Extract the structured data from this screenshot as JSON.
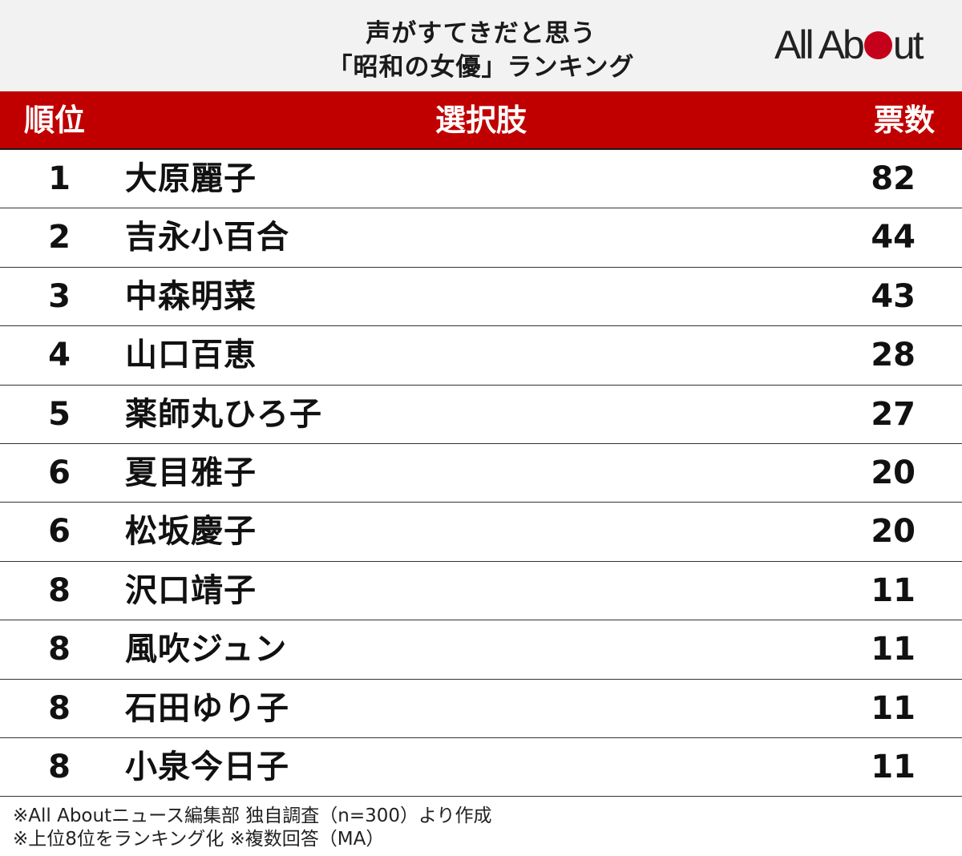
{
  "title": {
    "line1": "声がすてきだと思う",
    "line2": "「昭和の女優」ランキング"
  },
  "logo": {
    "text_before": "All Ab",
    "text_after": "ut",
    "dot_color": "#c4001b"
  },
  "table": {
    "headers": {
      "rank": "順位",
      "name": "選択肢",
      "votes": "票数"
    },
    "header_color": "#c00000",
    "rows": [
      {
        "rank": "1",
        "name": "大原麗子",
        "votes": "82"
      },
      {
        "rank": "2",
        "name": "吉永小百合",
        "votes": "44"
      },
      {
        "rank": "3",
        "name": "中森明菜",
        "votes": "43"
      },
      {
        "rank": "4",
        "name": "山口百恵",
        "votes": "28"
      },
      {
        "rank": "5",
        "name": "薬師丸ひろ子",
        "votes": "27"
      },
      {
        "rank": "6",
        "name": "夏目雅子",
        "votes": "20"
      },
      {
        "rank": "6",
        "name": "松坂慶子",
        "votes": "20"
      },
      {
        "rank": "8",
        "name": "沢口靖子",
        "votes": "11"
      },
      {
        "rank": "8",
        "name": "風吹ジュン",
        "votes": "11"
      },
      {
        "rank": "8",
        "name": "石田ゆり子",
        "votes": "11"
      },
      {
        "rank": "8",
        "name": "小泉今日子",
        "votes": "11"
      }
    ]
  },
  "notes": {
    "line1": "※All Aboutニュース編集部 独自調査（n=300）より作成",
    "line2": "※上位8位をランキング化  ※複数回答（MA）"
  }
}
